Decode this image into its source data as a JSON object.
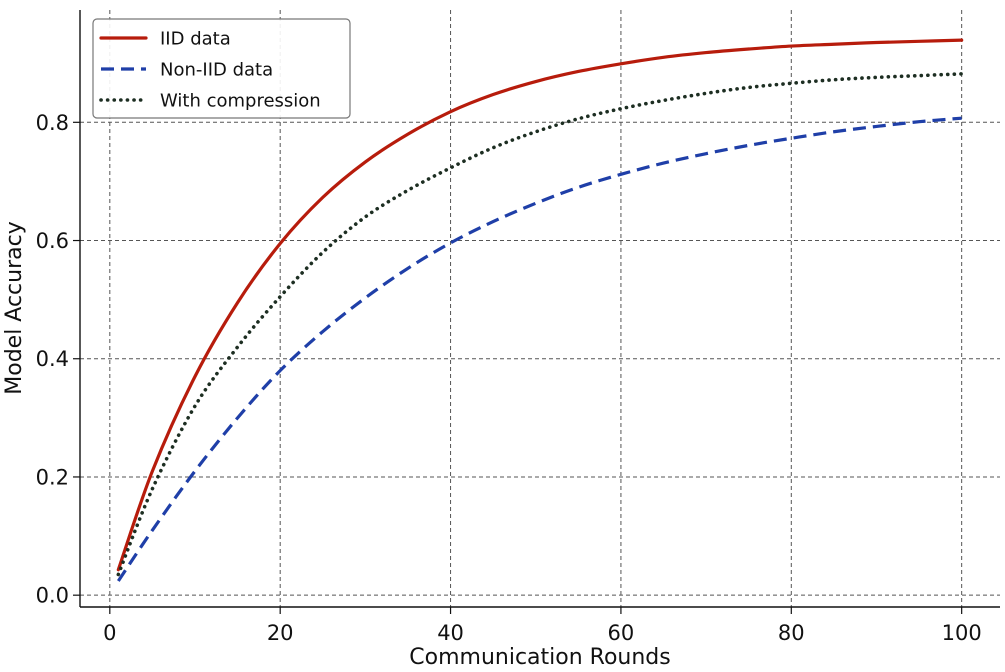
{
  "chart_data": {
    "type": "line",
    "title": "",
    "xlabel": "Communication Rounds",
    "ylabel": "Model Accuracy",
    "xlim": [
      -3.5,
      104.5
    ],
    "ylim": [
      -0.02,
      0.99
    ],
    "xticks": [
      0,
      20,
      40,
      60,
      80,
      100
    ],
    "xtick_labels": [
      "0",
      "20",
      "40",
      "60",
      "80",
      "100"
    ],
    "yticks": [
      0.0,
      0.2,
      0.4,
      0.6,
      0.8
    ],
    "ytick_labels": [
      "0.0",
      "0.2",
      "0.4",
      "0.6",
      "0.8"
    ],
    "grid": true,
    "legend_position": "top-left",
    "x": [
      1,
      5,
      10,
      15,
      20,
      25,
      30,
      35,
      40,
      45,
      50,
      55,
      60,
      65,
      70,
      75,
      80,
      85,
      90,
      95,
      100
    ],
    "series": [
      {
        "name": "IID data",
        "color": "#b71c0c",
        "style": "solid",
        "values": [
          0.043,
          0.21,
          0.37,
          0.495,
          0.595,
          0.673,
          0.733,
          0.78,
          0.818,
          0.847,
          0.869,
          0.886,
          0.899,
          0.91,
          0.918,
          0.924,
          0.929,
          0.932,
          0.935,
          0.937,
          0.939
        ]
      },
      {
        "name": "Non-IID data",
        "color": "#1f3fa8",
        "style": "dashed",
        "values": [
          0.024,
          0.11,
          0.21,
          0.3,
          0.38,
          0.446,
          0.503,
          0.553,
          0.596,
          0.632,
          0.663,
          0.69,
          0.712,
          0.731,
          0.747,
          0.761,
          0.773,
          0.784,
          0.793,
          0.801,
          0.807
        ]
      },
      {
        "name": "With compression",
        "color": "#1d2e22",
        "style": "dotted",
        "values": [
          0.035,
          0.18,
          0.32,
          0.42,
          0.505,
          0.58,
          0.64,
          0.685,
          0.723,
          0.757,
          0.784,
          0.806,
          0.823,
          0.837,
          0.849,
          0.859,
          0.866,
          0.872,
          0.876,
          0.879,
          0.882
        ]
      }
    ]
  }
}
